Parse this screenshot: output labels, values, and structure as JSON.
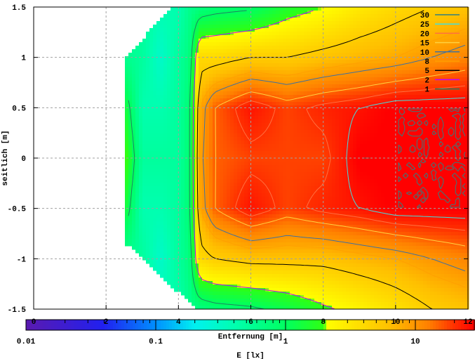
{
  "chart_data": {
    "type": "heatmap",
    "title": "",
    "xlabel": "Entfernung [m]",
    "ylabel": "seitlich [m]",
    "colorbar_label": "E [lx]",
    "xlim": [
      0,
      12
    ],
    "ylim": [
      -1.5,
      1.5
    ],
    "x_ticks": [
      "0",
      "2",
      "4",
      "6",
      "8",
      "10",
      "12"
    ],
    "y_ticks": [
      "1.5",
      "1",
      "0.5",
      "0",
      "-0.5",
      "-1",
      "-1.5"
    ],
    "colorbar_scale": "log",
    "colorbar_range": [
      0.01,
      29
    ],
    "colorbar_ticks": [
      "0.01",
      "0.1",
      "1",
      "10"
    ],
    "grid": true,
    "legend_position": "top-right",
    "contours": [
      {
        "level": "30",
        "color": "#308080"
      },
      {
        "level": "25",
        "color": "#40e0e0"
      },
      {
        "level": "20",
        "color": "#ff7040"
      },
      {
        "level": "15",
        "color": "#ffd040"
      },
      {
        "level": "10",
        "color": "#4070a0"
      },
      {
        "level": "8",
        "color": "#ffa000"
      },
      {
        "level": "5",
        "color": "#000000"
      },
      {
        "level": "2",
        "color": "#c000ff"
      },
      {
        "level": "1",
        "color": "#208060"
      }
    ],
    "domain_polygon": [
      [
        2.55,
        -0.85
      ],
      [
        2.55,
        1.0
      ],
      [
        3.8,
        1.5
      ],
      [
        12,
        1.5
      ],
      [
        12,
        -1.5
      ],
      [
        4.5,
        -1.5
      ]
    ],
    "grid_x": [
      2.5,
      3,
      3.5,
      4,
      4.3,
      4.6,
      5,
      6,
      7,
      8,
      9,
      10,
      11,
      12
    ],
    "grid_y": [
      1.5,
      1.0,
      0.5,
      0,
      -0.5,
      -1.0,
      -1.5
    ],
    "values_lx": [
      [
        0.5,
        0.6,
        1.5,
        2.5,
        1.5,
        0.6,
        0.5
      ],
      [
        0.5,
        0.5,
        0.4,
        0.5,
        0.4,
        0.5,
        0.5
      ],
      [
        0.4,
        0.3,
        0.4,
        0.5,
        0.4,
        0.3,
        0.4
      ],
      [
        0.4,
        0.5,
        0.5,
        0.5,
        0.5,
        0.5,
        0.4
      ],
      [
        0.6,
        0.7,
        0.8,
        0.8,
        0.8,
        0.7,
        0.6
      ],
      [
        0.7,
        4,
        8,
        9,
        8,
        4,
        0.7
      ],
      [
        0.8,
        4,
        15,
        15,
        15,
        5,
        0.8
      ],
      [
        0.9,
        5,
        25,
        18,
        25,
        6,
        0.9
      ],
      [
        1.5,
        5,
        18,
        18,
        18,
        6,
        1.2
      ],
      [
        2,
        6,
        22,
        18,
        22,
        6,
        1.8
      ],
      [
        3,
        7,
        25,
        30,
        25,
        7,
        2.5
      ],
      [
        4,
        8,
        30,
        30,
        30,
        8,
        3.5
      ],
      [
        5,
        10,
        30,
        30,
        30,
        10,
        5
      ],
      [
        6,
        12,
        30,
        30,
        30,
        12,
        6
      ]
    ]
  }
}
